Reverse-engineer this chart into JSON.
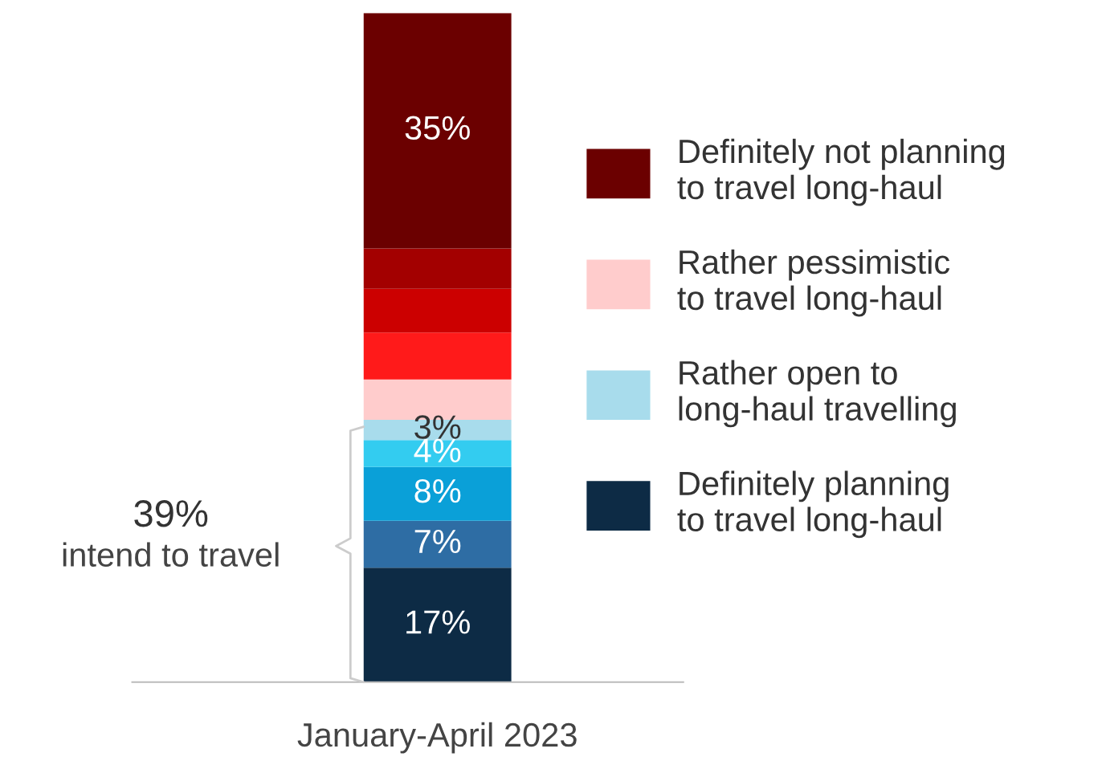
{
  "chart_data": {
    "type": "bar",
    "stacked": true,
    "categories": [
      "January-April 2023"
    ],
    "series": [
      {
        "color": "#0d2b45",
        "values": [
          17
        ],
        "value_labels": [
          "17%"
        ],
        "name": "Definitely planning\nto travel long-haul"
      },
      {
        "color": "#2e6da4",
        "values": [
          7
        ],
        "value_labels": [
          "7%"
        ]
      },
      {
        "color": "#0aa0d8",
        "values": [
          8
        ],
        "value_labels": [
          "8%"
        ]
      },
      {
        "color": "#33ccf0",
        "values": [
          4
        ],
        "value_labels": [
          "4%"
        ]
      },
      {
        "color": "#a8dcec",
        "values": [
          3
        ],
        "value_labels": [
          "3%"
        ],
        "name": "Rather open to\nlong-haul travelling"
      },
      {
        "color": "#ffcccc",
        "values": [
          6
        ],
        "value_labels": [
          null
        ],
        "name": "Rather pessimistic\nto travel long-haul"
      },
      {
        "color": "#ff1a1a",
        "values": [
          7
        ],
        "value_labels": [
          null
        ]
      },
      {
        "color": "#cc0000",
        "values": [
          6.5
        ],
        "value_labels": [
          null
        ]
      },
      {
        "color": "#a30000",
        "values": [
          6
        ],
        "value_labels": [
          null
        ]
      },
      {
        "color": "#6b0000",
        "values": [
          35
        ],
        "value_labels": [
          "35%"
        ],
        "name": "Definitely not planning\nto travel long-haul"
      }
    ],
    "annotations": [
      "39%",
      "intend to travel"
    ],
    "legend": "right",
    "grid": false
  }
}
